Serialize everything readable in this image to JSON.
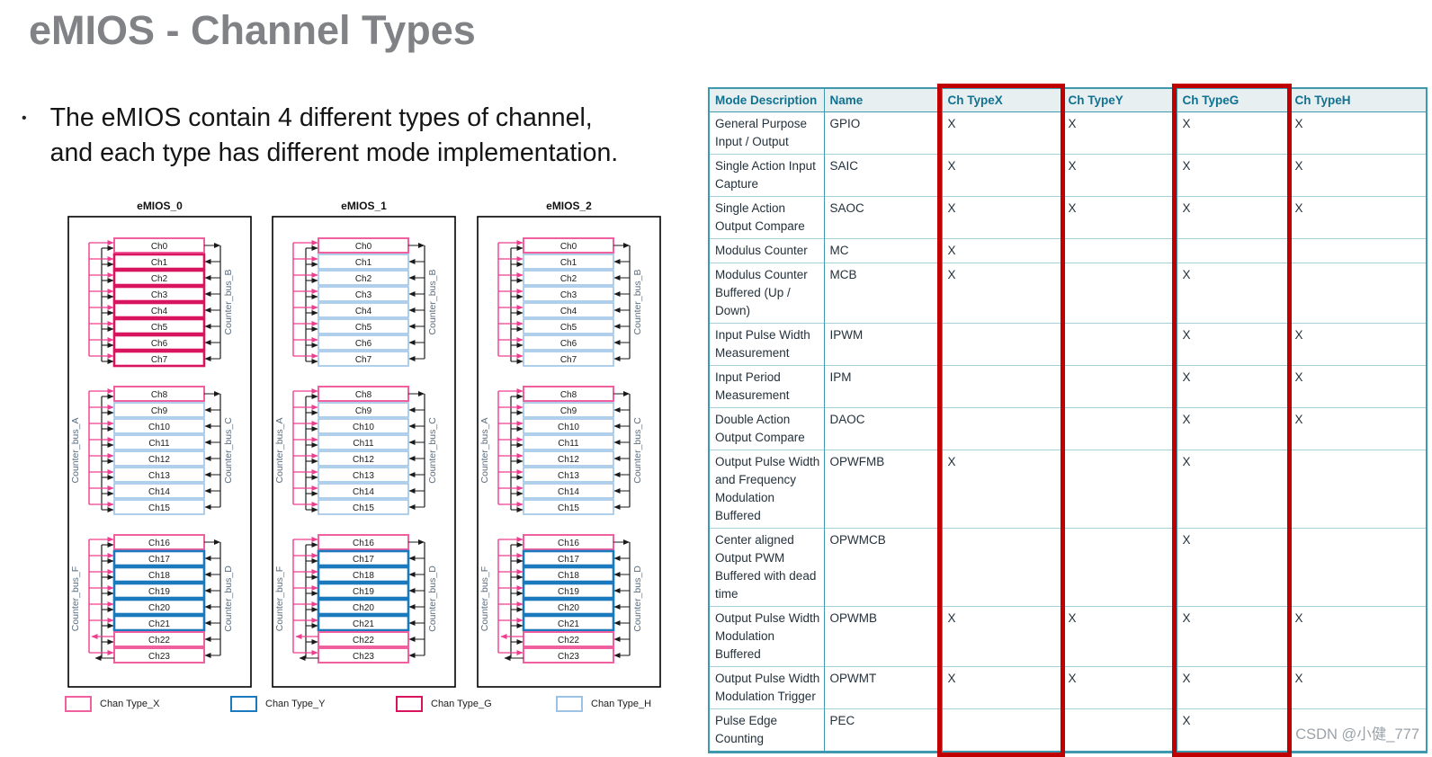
{
  "slide": {
    "title": "eMIOS - Channel Types",
    "bullet": {
      "marker": "•",
      "lines": [
        "The eMIOS contain 4 different types of channel,",
        "and each type has different mode implementation."
      ]
    }
  },
  "diagrams": {
    "type_colors": {
      "X": "#F0609F",
      "Y": "#1B79BD",
      "G": "#D9145E",
      "H": "#9CC3E5"
    },
    "bus_line_colors": {
      "pink": "#EE3D8F",
      "black": "#1A1A1A"
    },
    "legend": [
      {
        "label": "Chan Type_X",
        "type": "X"
      },
      {
        "label": "Chan Type_Y",
        "type": "Y"
      },
      {
        "label": "Chan Type_G",
        "type": "G"
      },
      {
        "label": "Chan Type_H",
        "type": "H"
      }
    ],
    "instances": [
      {
        "title": "eMIOS_0",
        "groups": [
          {
            "left_bus": "",
            "right_bus": "Counter_bus_B",
            "channels": [
              {
                "name": "Ch0",
                "type": "X"
              },
              {
                "name": "Ch1",
                "type": "G"
              },
              {
                "name": "Ch2",
                "type": "G"
              },
              {
                "name": "Ch3",
                "type": "G"
              },
              {
                "name": "Ch4",
                "type": "G"
              },
              {
                "name": "Ch5",
                "type": "G"
              },
              {
                "name": "Ch6",
                "type": "G"
              },
              {
                "name": "Ch7",
                "type": "G"
              }
            ]
          },
          {
            "left_bus": "Counter_bus_A",
            "right_bus": "Counter_bus_C",
            "channels": [
              {
                "name": "Ch8",
                "type": "X"
              },
              {
                "name": "Ch9",
                "type": "H"
              },
              {
                "name": "Ch10",
                "type": "H"
              },
              {
                "name": "Ch11",
                "type": "H"
              },
              {
                "name": "Ch12",
                "type": "H"
              },
              {
                "name": "Ch13",
                "type": "H"
              },
              {
                "name": "Ch14",
                "type": "H"
              },
              {
                "name": "Ch15",
                "type": "H"
              }
            ]
          },
          {
            "left_bus": "Counter_bus_F",
            "right_bus": "Counter_bus_D",
            "channels": [
              {
                "name": "Ch16",
                "type": "X"
              },
              {
                "name": "Ch17",
                "type": "Y"
              },
              {
                "name": "Ch18",
                "type": "Y"
              },
              {
                "name": "Ch19",
                "type": "Y"
              },
              {
                "name": "Ch20",
                "type": "Y"
              },
              {
                "name": "Ch21",
                "type": "Y"
              },
              {
                "name": "Ch22",
                "type": "X"
              },
              {
                "name": "Ch23",
                "type": "X"
              }
            ]
          }
        ]
      },
      {
        "title": "eMIOS_1",
        "groups": [
          {
            "left_bus": "",
            "right_bus": "Counter_bus_B",
            "channels": [
              {
                "name": "Ch0",
                "type": "X"
              },
              {
                "name": "Ch1",
                "type": "H"
              },
              {
                "name": "Ch2",
                "type": "H"
              },
              {
                "name": "Ch3",
                "type": "H"
              },
              {
                "name": "Ch4",
                "type": "H"
              },
              {
                "name": "Ch5",
                "type": "H"
              },
              {
                "name": "Ch6",
                "type": "H"
              },
              {
                "name": "Ch7",
                "type": "H"
              }
            ]
          },
          {
            "left_bus": "Counter_bus_A",
            "right_bus": "Counter_bus_C",
            "channels": [
              {
                "name": "Ch8",
                "type": "X"
              },
              {
                "name": "Ch9",
                "type": "H"
              },
              {
                "name": "Ch10",
                "type": "H"
              },
              {
                "name": "Ch11",
                "type": "H"
              },
              {
                "name": "Ch12",
                "type": "H"
              },
              {
                "name": "Ch13",
                "type": "H"
              },
              {
                "name": "Ch14",
                "type": "H"
              },
              {
                "name": "Ch15",
                "type": "H"
              }
            ]
          },
          {
            "left_bus": "Counter_bus_F",
            "right_bus": "Counter_bus_D",
            "channels": [
              {
                "name": "Ch16",
                "type": "X"
              },
              {
                "name": "Ch17",
                "type": "Y"
              },
              {
                "name": "Ch18",
                "type": "Y"
              },
              {
                "name": "Ch19",
                "type": "Y"
              },
              {
                "name": "Ch20",
                "type": "Y"
              },
              {
                "name": "Ch21",
                "type": "Y"
              },
              {
                "name": "Ch22",
                "type": "X"
              },
              {
                "name": "Ch23",
                "type": "X"
              }
            ]
          }
        ]
      },
      {
        "title": "eMIOS_2",
        "groups": [
          {
            "left_bus": "",
            "right_bus": "Counter_bus_B",
            "channels": [
              {
                "name": "Ch0",
                "type": "X"
              },
              {
                "name": "Ch1",
                "type": "H"
              },
              {
                "name": "Ch2",
                "type": "H"
              },
              {
                "name": "Ch3",
                "type": "H"
              },
              {
                "name": "Ch4",
                "type": "H"
              },
              {
                "name": "Ch5",
                "type": "H"
              },
              {
                "name": "Ch6",
                "type": "H"
              },
              {
                "name": "Ch7",
                "type": "H"
              }
            ]
          },
          {
            "left_bus": "Counter_bus_A",
            "right_bus": "Counter_bus_C",
            "channels": [
              {
                "name": "Ch8",
                "type": "X"
              },
              {
                "name": "Ch9",
                "type": "H"
              },
              {
                "name": "Ch10",
                "type": "H"
              },
              {
                "name": "Ch11",
                "type": "H"
              },
              {
                "name": "Ch12",
                "type": "H"
              },
              {
                "name": "Ch13",
                "type": "H"
              },
              {
                "name": "Ch14",
                "type": "H"
              },
              {
                "name": "Ch15",
                "type": "H"
              }
            ]
          },
          {
            "left_bus": "Counter_bus_F",
            "right_bus": "Counter_bus_D",
            "channels": [
              {
                "name": "Ch16",
                "type": "X"
              },
              {
                "name": "Ch17",
                "type": "Y"
              },
              {
                "name": "Ch18",
                "type": "Y"
              },
              {
                "name": "Ch19",
                "type": "Y"
              },
              {
                "name": "Ch20",
                "type": "Y"
              },
              {
                "name": "Ch21",
                "type": "Y"
              },
              {
                "name": "Ch22",
                "type": "X"
              },
              {
                "name": "Ch23",
                "type": "X"
              }
            ]
          }
        ]
      }
    ]
  },
  "table": {
    "headers": [
      "Mode Description",
      "Name",
      "Ch TypeX",
      "Ch TypeY",
      "Ch TypeG",
      "Ch TypeH"
    ],
    "rows": [
      {
        "mode": "General Purpose Input / Output",
        "name": "GPIO",
        "marks": [
          "X",
          "X",
          "X",
          "X"
        ]
      },
      {
        "mode": "Single Action Input Capture",
        "name": "SAIC",
        "marks": [
          "X",
          "X",
          "X",
          "X"
        ]
      },
      {
        "mode": "Single Action Output Compare",
        "name": "SAOC",
        "marks": [
          "X",
          "X",
          "X",
          "X"
        ]
      },
      {
        "mode": "Modulus Counter",
        "name": "MC",
        "marks": [
          "X",
          "",
          "",
          ""
        ]
      },
      {
        "mode": "Modulus Counter Buffered (Up / Down)",
        "name": "MCB",
        "marks": [
          "X",
          "",
          "X",
          ""
        ]
      },
      {
        "mode": "Input Pulse Width Measurement",
        "name": "IPWM",
        "marks": [
          "",
          "",
          "X",
          "X"
        ]
      },
      {
        "mode": "Input Period Measurement",
        "name": "IPM",
        "marks": [
          "",
          "",
          "X",
          "X"
        ]
      },
      {
        "mode": "Double Action Output Compare",
        "name": "DAOC",
        "marks": [
          "",
          "",
          "X",
          "X"
        ]
      },
      {
        "mode": "Output Pulse Width and Frequency Modulation Buffered",
        "name": "OPWFMB",
        "marks": [
          "X",
          "",
          "X",
          ""
        ]
      },
      {
        "mode": "Center aligned Output PWM Buffered with dead time",
        "name": "OPWMCB",
        "marks": [
          "",
          "",
          "X",
          ""
        ]
      },
      {
        "mode": "Output Pulse Width Modulation Buffered",
        "name": "OPWMB",
        "marks": [
          "X",
          "X",
          "X",
          "X"
        ]
      },
      {
        "mode": "Output Pulse Width Modulation Trigger",
        "name": "OPWMT",
        "marks": [
          "X",
          "X",
          "X",
          "X"
        ]
      },
      {
        "mode": "Pulse Edge Counting",
        "name": "PEC",
        "marks": [
          "",
          "",
          "X",
          ""
        ]
      }
    ],
    "highlighted_columns": [
      "Ch TypeX",
      "Ch TypeG"
    ],
    "highlight_color": "#C00000"
  },
  "watermark": "CSDN @小健_777"
}
